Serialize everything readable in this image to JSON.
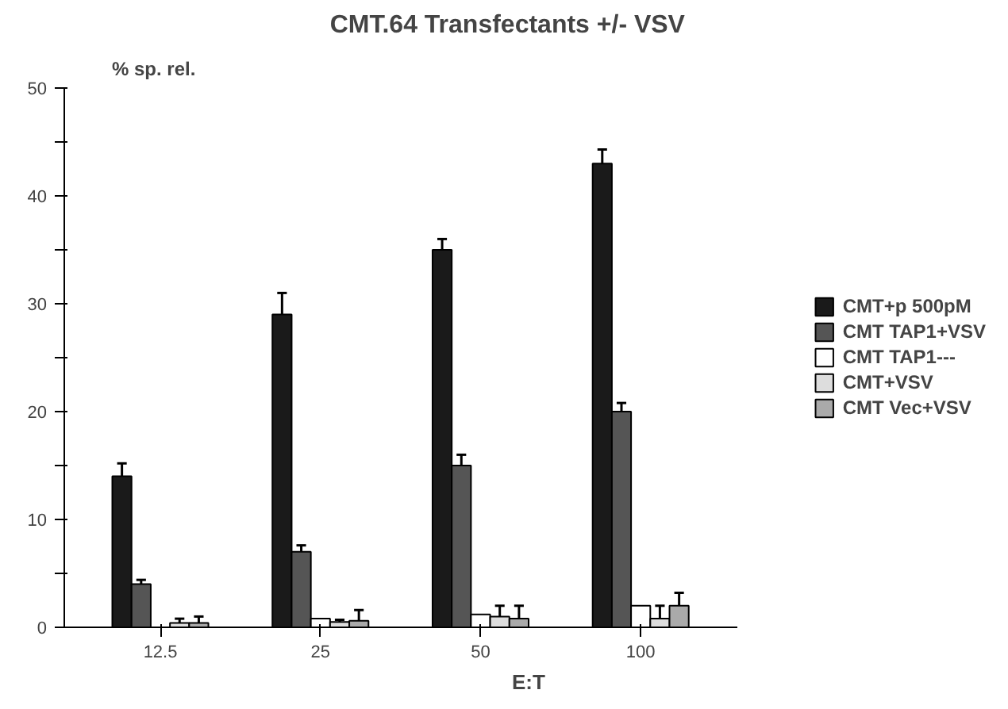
{
  "chart_data": {
    "type": "bar",
    "title": "CMT.64   Transfectants   +/-   VSV",
    "xlabel": "E:T",
    "ylabel": "% sp. rel.",
    "categories": [
      "12.5",
      "25",
      "50",
      "100"
    ],
    "series": [
      {
        "name": "CMT+p 500pM",
        "color": "#1a1a1a",
        "values": [
          14,
          29,
          35,
          43
        ],
        "errors": [
          1.2,
          2,
          1,
          1.3
        ]
      },
      {
        "name": "CMT TAP1+VSV",
        "color": "#555555",
        "values": [
          4,
          7,
          15,
          20
        ],
        "errors": [
          0.4,
          0.6,
          1,
          0.8
        ]
      },
      {
        "name": "CMT TAP1---",
        "color": "#ffffff",
        "values": [
          null,
          0.8,
          1.2,
          2
        ],
        "errors": [
          null,
          null,
          null,
          null
        ]
      },
      {
        "name": "CMT+VSV",
        "color": "#dddddd",
        "values": [
          0.4,
          0.5,
          1,
          0.8
        ],
        "errors": [
          0.4,
          0.2,
          1,
          1.2
        ]
      },
      {
        "name": "CMT Vec+VSV",
        "color": "#aaaaaa",
        "values": [
          0.4,
          0.6,
          0.8,
          2
        ],
        "errors": [
          0.6,
          1,
          1.2,
          1.2
        ]
      }
    ],
    "ylim": [
      0,
      50
    ],
    "yticks": [
      0,
      {
        "value": 5,
        "label": null
      },
      10,
      {
        "value": 15,
        "label": null
      },
      20,
      {
        "value": 25,
        "label": null
      },
      30,
      {
        "value": 35,
        "label": null
      },
      40,
      {
        "value": 45,
        "label": null
      },
      50
    ],
    "legend": "right",
    "grid": false
  }
}
